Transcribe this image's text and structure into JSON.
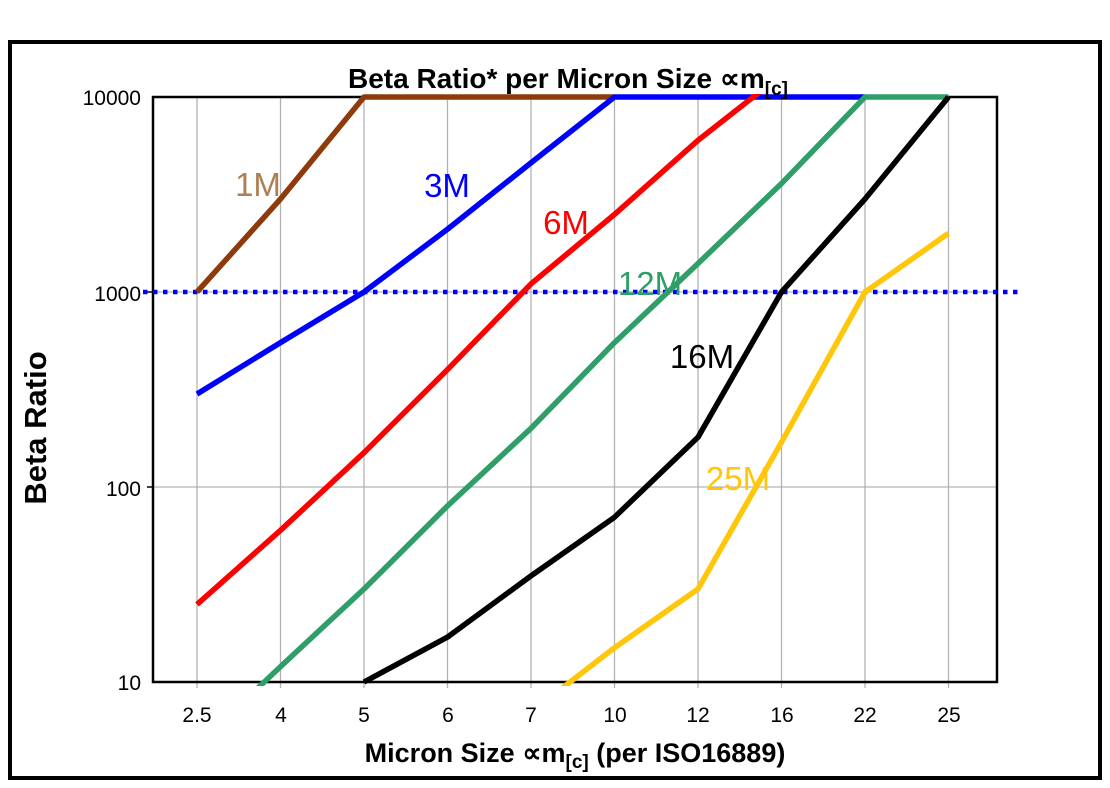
{
  "chart_data": {
    "type": "line",
    "title": {
      "prefix": "Beta Ratio* per Micron Size ",
      "symbol": "∝m",
      "sub": "[c]"
    },
    "xlabel": {
      "prefix": "Micron Size ",
      "symbol": "∝m",
      "sub": "[c]",
      "suffix": " (per ISO16889)"
    },
    "ylabel": "Beta Ratio",
    "x_categories": [
      "2.5",
      "4",
      "5",
      "6",
      "7",
      "10",
      "12",
      "16",
      "22",
      "25"
    ],
    "y_ticks": [
      "10",
      "100",
      "1000",
      "10000"
    ],
    "y_scale": "log",
    "ylim": [
      10,
      10000
    ],
    "grid": true,
    "legend_position": "inline-labels",
    "colors": {
      "grid": "#b3b3b3",
      "border": "#000000",
      "reference": "#0000ff",
      "background": "#ffffff"
    },
    "reference_line": {
      "value": 1000,
      "style": "dotted",
      "color": "#0000ff"
    },
    "series": [
      {
        "name": "1M",
        "color": "#8e3b0b",
        "label_color": "#ad7f52",
        "values": [
          1000,
          3000,
          10000,
          10000,
          10000,
          10000,
          null,
          null,
          null,
          null
        ]
      },
      {
        "name": "3M",
        "color": "#0000ff",
        "label_color": "#0000ff",
        "values": [
          300,
          550,
          1000,
          2100,
          4600,
          10000,
          10000,
          10000,
          10000,
          null
        ]
      },
      {
        "name": "6M",
        "color": "#ff0000",
        "label_color": "#ff0000",
        "values": [
          25,
          60,
          150,
          400,
          1100,
          2500,
          6000,
          13000,
          null,
          null
        ]
      },
      {
        "name": "12M",
        "color": "#2f9e68",
        "label_color": "#2f9e68",
        "values": [
          4.7,
          12,
          30,
          80,
          200,
          550,
          1400,
          3600,
          10000,
          10000
        ]
      },
      {
        "name": "16M",
        "color": "#000000",
        "label_color": "#000000",
        "values": [
          null,
          null,
          10,
          17,
          35,
          70,
          180,
          1000,
          3000,
          10000
        ]
      },
      {
        "name": "25M",
        "color": "#ffc60a",
        "label_color": "#ffc60a",
        "values": [
          null,
          null,
          null,
          null,
          7,
          15,
          30,
          170,
          1000,
          2000
        ]
      }
    ]
  }
}
